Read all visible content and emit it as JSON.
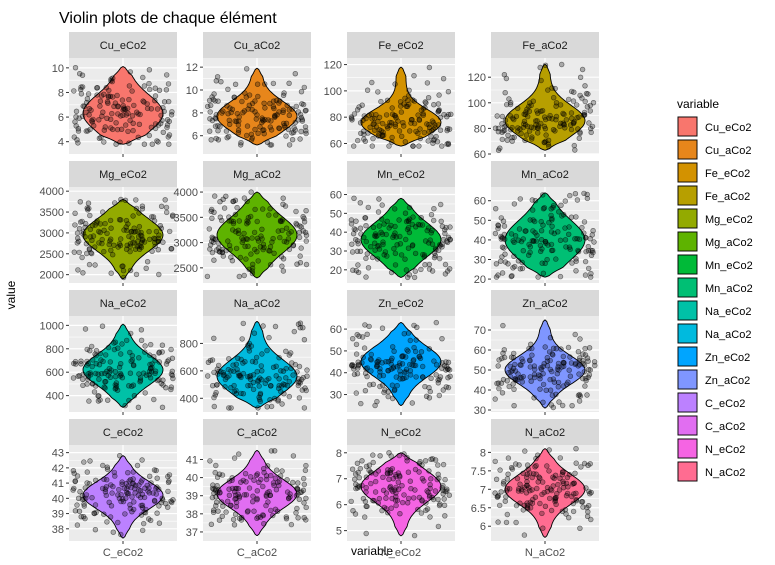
{
  "chart_data": {
    "type": "violin",
    "title": "Violin plots de chaque élément",
    "xlabel": "variable",
    "ylabel": "value",
    "legend": {
      "title": "variable",
      "placement": "right",
      "entries": [
        {
          "label": "Cu_eCo2",
          "color": "#F8766D"
        },
        {
          "label": "Cu_aCo2",
          "color": "#E7861B"
        },
        {
          "label": "Fe_eCo2",
          "color": "#D39200"
        },
        {
          "label": "Fe_aCo2",
          "color": "#B79F00"
        },
        {
          "label": "Mg_eCo2",
          "color": "#93AA00"
        },
        {
          "label": "Mg_aCo2",
          "color": "#5EB300"
        },
        {
          "label": "Mn_eCo2",
          "color": "#00BA38"
        },
        {
          "label": "Mn_aCo2",
          "color": "#00BF74"
        },
        {
          "label": "Na_eCo2",
          "color": "#00C1A7"
        },
        {
          "label": "Na_aCo2",
          "color": "#00BADE"
        },
        {
          "label": "Zn_eCo2",
          "color": "#00A5FF"
        },
        {
          "label": "Zn_aCo2",
          "color": "#7F96FF"
        },
        {
          "label": "C_eCo2",
          "color": "#BC81FF"
        },
        {
          "label": "C_aCo2",
          "color": "#E16EF1"
        },
        {
          "label": "N_eCo2",
          "color": "#F564E3"
        },
        {
          "label": "N_aCo2",
          "color": "#FF6C91"
        }
      ]
    },
    "grid": true,
    "panels": [
      {
        "name": "Cu_eCo2",
        "category": "Cu_eCo2",
        "color": "#F8766D",
        "ylim": [
          3,
          10.8
        ],
        "ticks": [
          4,
          6,
          8,
          10
        ],
        "min": 3.8,
        "max": 10.1,
        "median": 6.3,
        "spread": 1.5
      },
      {
        "name": "Cu_aCo2",
        "category": "Cu_aCo2",
        "color": "#E7861B",
        "ylim": [
          4.4,
          12.8
        ],
        "ticks": [
          6,
          8,
          10,
          12
        ],
        "min": 5.2,
        "max": 11.9,
        "median": 7.7,
        "spread": 1.3
      },
      {
        "name": "Fe_eCo2",
        "category": "Fe_eCo2",
        "color": "#D39200",
        "ylim": [
          52,
          125
        ],
        "ticks": [
          60,
          80,
          100,
          120
        ],
        "min": 58,
        "max": 118,
        "median": 76,
        "spread": 10
      },
      {
        "name": "Fe_aCo2",
        "category": "Fe_aCo2",
        "color": "#B79F00",
        "ylim": [
          60,
          135
        ],
        "ticks": [
          60,
          80,
          100,
          120
        ],
        "min": 63,
        "max": 130,
        "median": 86,
        "spread": 12
      },
      {
        "name": "Mg_eCo2",
        "category": "Mg_eCo2",
        "color": "#93AA00",
        "ylim": [
          1800,
          4100
        ],
        "ticks": [
          2000,
          2500,
          3000,
          3500,
          4000
        ],
        "min": 1900,
        "max": 3800,
        "median": 2950,
        "spread": 380
      },
      {
        "name": "Mg_aCo2",
        "category": "Mg_aCo2",
        "color": "#5EB300",
        "ylim": [
          2200,
          4100
        ],
        "ticks": [
          2500,
          3000,
          3500,
          4000
        ],
        "min": 2300,
        "max": 4000,
        "median": 3150,
        "spread": 350
      },
      {
        "name": "Mn_eCo2",
        "category": "Mn_eCo2",
        "color": "#00BA38",
        "ylim": [
          13,
          64
        ],
        "ticks": [
          20,
          30,
          40,
          50,
          60
        ],
        "min": 16,
        "max": 58,
        "median": 36,
        "spread": 9
      },
      {
        "name": "Mn_aCo2",
        "category": "Mn_aCo2",
        "color": "#00BF74",
        "ylim": [
          18,
          67
        ],
        "ticks": [
          20,
          30,
          40,
          50,
          60
        ],
        "min": 21,
        "max": 64,
        "median": 40,
        "spread": 10
      },
      {
        "name": "Na_eCo2",
        "category": "Na_eCo2",
        "color": "#00C1A7",
        "ylim": [
          260,
          1080
        ],
        "ticks": [
          400,
          600,
          800,
          1000
        ],
        "min": 300,
        "max": 1010,
        "median": 620,
        "spread": 130
      },
      {
        "name": "Na_aCo2",
        "category": "Na_aCo2",
        "color": "#00BADE",
        "ylim": [
          300,
          1000
        ],
        "ticks": [
          400,
          600,
          800
        ],
        "min": 330,
        "max": 960,
        "median": 560,
        "spread": 120
      },
      {
        "name": "Zn_eCo2",
        "category": "Zn_eCo2",
        "color": "#00A5FF",
        "ylim": [
          22,
          66
        ],
        "ticks": [
          30,
          40,
          50,
          60
        ],
        "min": 25,
        "max": 63,
        "median": 45,
        "spread": 7
      },
      {
        "name": "Zn_aCo2",
        "category": "Zn_aCo2",
        "color": "#7F96FF",
        "ylim": [
          29,
          77
        ],
        "ticks": [
          30,
          40,
          50,
          60,
          70
        ],
        "min": 31,
        "max": 75,
        "median": 50,
        "spread": 7
      },
      {
        "name": "C_eCo2",
        "category": "C_eCo2",
        "color": "#BC81FF",
        "ylim": [
          37.2,
          43.5
        ],
        "ticks": [
          38,
          39,
          40,
          41,
          42,
          43
        ],
        "min": 37.4,
        "max": 42.8,
        "median": 40.2,
        "spread": 0.9
      },
      {
        "name": "C_aCo2",
        "category": "C_aCo2",
        "color": "#E16EF1",
        "ylim": [
          36.5,
          41.8
        ],
        "ticks": [
          37,
          38,
          39,
          40,
          41
        ],
        "min": 36.8,
        "max": 41.5,
        "median": 39.1,
        "spread": 0.8
      },
      {
        "name": "N_eCo2",
        "category": "N_eCo2",
        "color": "#F564E3",
        "ylim": [
          4.6,
          8.3
        ],
        "ticks": [
          5,
          6,
          7,
          8
        ],
        "min": 4.8,
        "max": 8.0,
        "median": 6.7,
        "spread": 0.6
      },
      {
        "name": "N_aCo2",
        "category": "N_aCo2",
        "color": "#FF6C91",
        "ylim": [
          5.6,
          8.2
        ],
        "ticks": [
          6.0,
          6.5,
          7.0,
          7.5,
          8.0
        ],
        "min": 5.7,
        "max": 8.1,
        "median": 7.0,
        "spread": 0.4
      }
    ]
  }
}
